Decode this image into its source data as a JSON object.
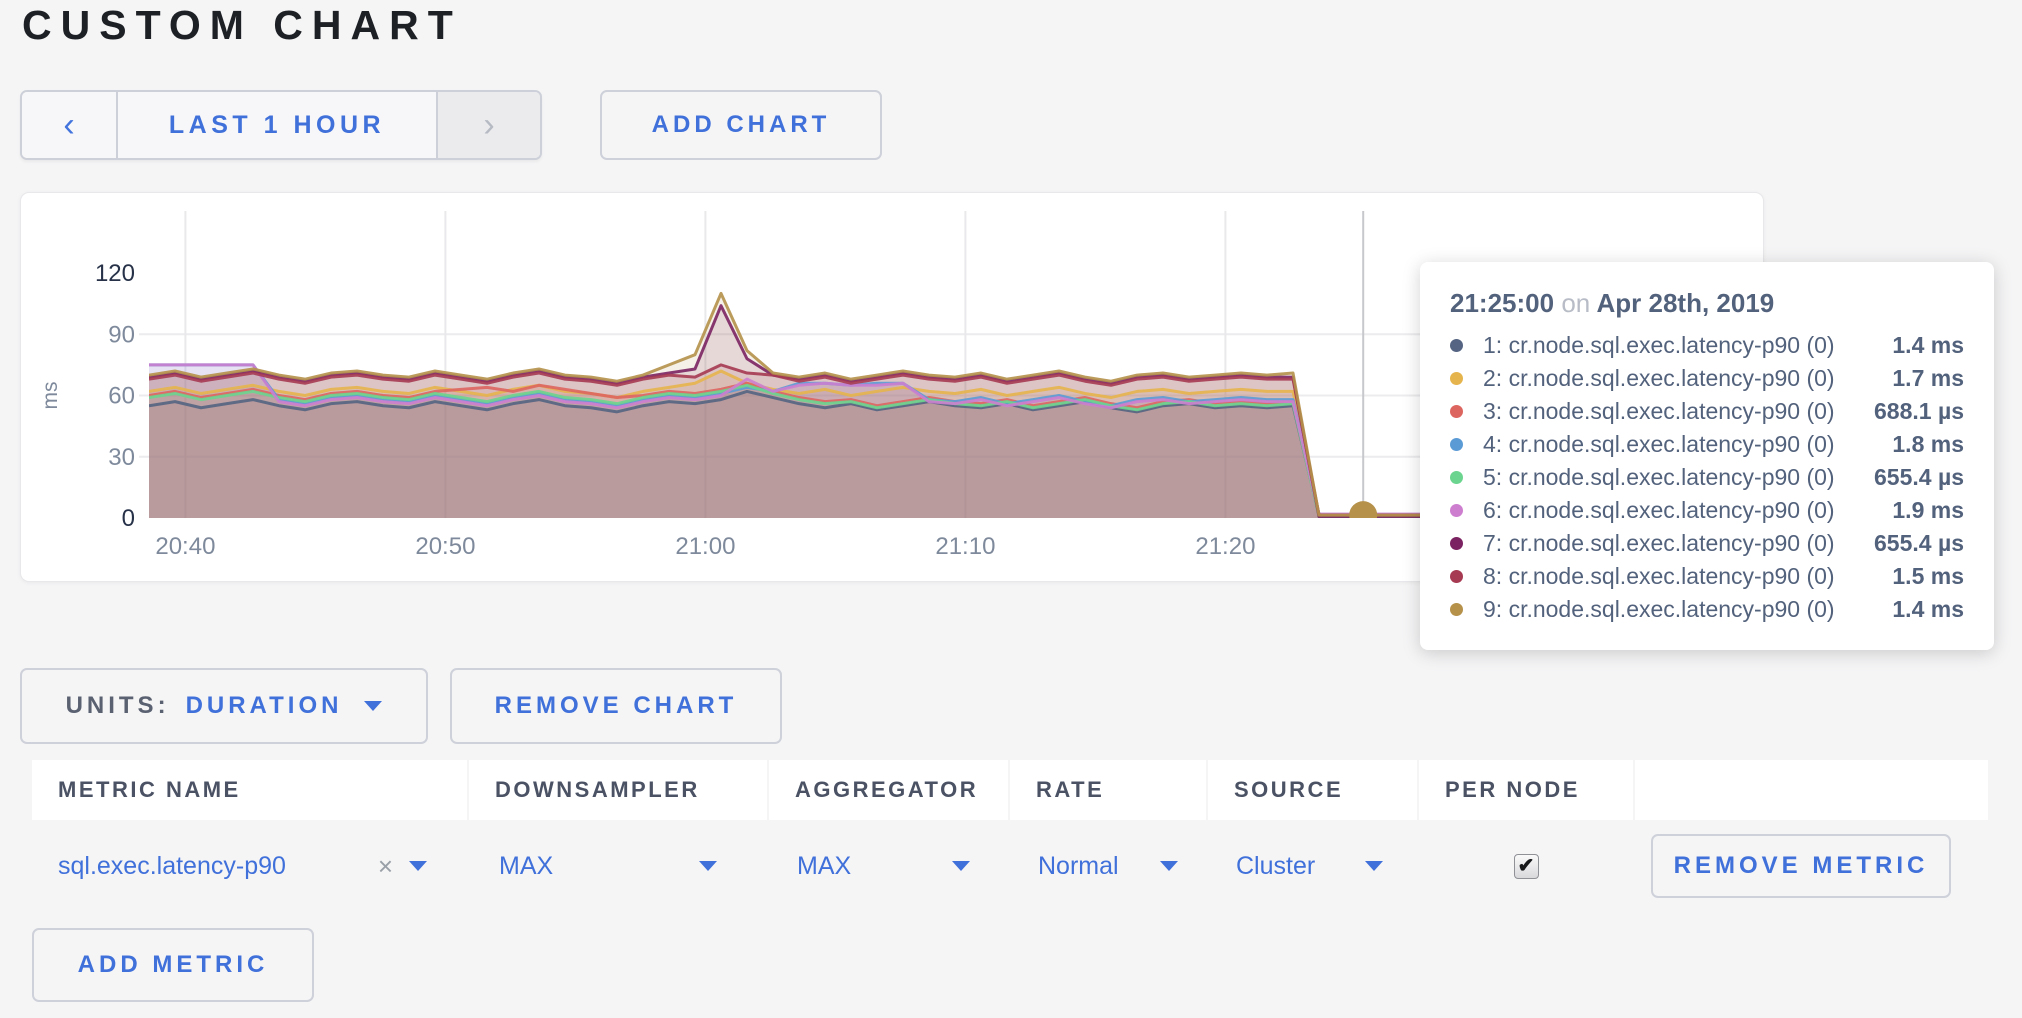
{
  "page": {
    "title": "CUSTOM CHART",
    "icons": {
      "chevron_left": "‹",
      "chevron_right": "›",
      "close": "×",
      "check": "✔"
    },
    "colors": {
      "accent_blue": "#4070da",
      "title_text": "#1d2025",
      "muted_text": "#7e8a9c",
      "tooltip_text": "#53627c"
    }
  },
  "toolbar": {
    "time_range_label": "LAST 1 HOUR",
    "add_chart_label": "ADD CHART"
  },
  "chart_controls": {
    "units_label": "UNITS:",
    "units_value": "DURATION",
    "remove_chart_label": "REMOVE CHART",
    "add_metric_label": "ADD METRIC"
  },
  "tooltip": {
    "time": "21:25:00",
    "on_word": "on",
    "date": "Apr 28th, 2019",
    "rows": [
      {
        "label": "1: cr.node.sql.exec.latency-p90 (0)",
        "value": "1.4 ms",
        "color": "#546482"
      },
      {
        "label": "2: cr.node.sql.exec.latency-p90 (0)",
        "value": "1.7 ms",
        "color": "#e5b44c"
      },
      {
        "label": "3: cr.node.sql.exec.latency-p90 (0)",
        "value": "688.1 µs",
        "color": "#dd6560"
      },
      {
        "label": "4: cr.node.sql.exec.latency-p90 (0)",
        "value": "1.8 ms",
        "color": "#5b9bd5"
      },
      {
        "label": "5: cr.node.sql.exec.latency-p90 (0)",
        "value": "655.4 µs",
        "color": "#6bd48e"
      },
      {
        "label": "6: cr.node.sql.exec.latency-p90 (0)",
        "value": "1.9 ms",
        "color": "#cd7ecf"
      },
      {
        "label": "7: cr.node.sql.exec.latency-p90 (0)",
        "value": "655.4 µs",
        "color": "#7b2362"
      },
      {
        "label": "8: cr.node.sql.exec.latency-p90 (0)",
        "value": "1.5 ms",
        "color": "#a63a52"
      },
      {
        "label": "9: cr.node.sql.exec.latency-p90 (0)",
        "value": "1.4 ms",
        "color": "#b5914a"
      }
    ]
  },
  "metrics_table": {
    "headers": [
      "METRIC NAME",
      "DOWNSAMPLER",
      "AGGREGATOR",
      "RATE",
      "SOURCE",
      "PER NODE"
    ],
    "rows": [
      {
        "metric_name": "sql.exec.latency-p90",
        "downsampler": "MAX",
        "aggregator": "MAX",
        "rate": "Normal",
        "source": "Cluster",
        "per_node": true,
        "remove_label": "REMOVE METRIC"
      }
    ]
  },
  "chart_data": {
    "type": "area",
    "ylabel": "ms",
    "ylim": [
      0,
      120
    ],
    "yticks": [
      0,
      30,
      60,
      90,
      120
    ],
    "xticks": [
      {
        "label": "20:40",
        "minute": 40
      },
      {
        "label": "20:50",
        "minute": 50
      },
      {
        "label": "21:00",
        "minute": 60
      },
      {
        "label": "21:10",
        "minute": 70
      },
      {
        "label": "21:20",
        "minute": 80
      }
    ],
    "grid": true,
    "legend_position": "tooltip",
    "x_start_minute": 38.6,
    "x_step_minute": 1,
    "hover": {
      "minute": 85.3,
      "time": "21:25:00",
      "series_index": 8,
      "value_ms": 1.4
    },
    "series": [
      {
        "name": "1: cr.node.sql.exec.latency-p90 (0)",
        "color": "#546482",
        "values": [
          55,
          57,
          54,
          56,
          58,
          55,
          53,
          56,
          57,
          55,
          54,
          57,
          55,
          53,
          56,
          58,
          55,
          54,
          52,
          55,
          57,
          56,
          58,
          62,
          59,
          56,
          54,
          56,
          53,
          55,
          57,
          55,
          54,
          56,
          53,
          55,
          57,
          54,
          52,
          55,
          56,
          54,
          55,
          54,
          55,
          1.4,
          1.4,
          1.4,
          1.4,
          1.4,
          1.4,
          1.4,
          1.4,
          1.4,
          1.4
        ]
      },
      {
        "name": "2: cr.node.sql.exec.latency-p90 (0)",
        "color": "#e5b44c",
        "values": [
          62,
          64,
          61,
          63,
          65,
          62,
          60,
          63,
          64,
          62,
          61,
          64,
          62,
          60,
          63,
          65,
          62,
          61,
          59,
          62,
          64,
          66,
          72,
          66,
          63,
          61,
          63,
          60,
          62,
          64,
          62,
          61,
          63,
          60,
          62,
          64,
          61,
          59,
          62,
          63,
          61,
          62,
          63,
          62,
          62,
          1.7,
          1.7,
          1.7,
          1.7,
          1.7,
          1.7,
          1.7,
          1.7,
          1.7,
          1.7
        ]
      },
      {
        "name": "3: cr.node.sql.exec.latency-p90 (0)",
        "color": "#dd6560",
        "values": [
          60,
          62,
          59,
          61,
          63,
          60,
          58,
          61,
          62,
          60,
          59,
          62,
          63,
          64,
          62,
          65,
          63,
          61,
          59,
          60,
          62,
          61,
          63,
          66,
          62,
          59,
          57,
          58,
          55,
          57,
          59,
          57,
          56,
          58,
          55,
          57,
          59,
          56,
          54,
          57,
          58,
          56,
          57,
          56,
          57,
          0.7,
          0.7,
          0.7,
          0.7,
          0.7,
          0.7,
          0.7,
          0.7,
          0.7,
          0.7
        ]
      },
      {
        "name": "4: cr.node.sql.exec.latency-p90 (0)",
        "color": "#5b9bd5",
        "values": [
          75,
          75,
          75,
          75,
          75,
          58,
          56,
          59,
          60,
          58,
          57,
          60,
          58,
          56,
          59,
          61,
          58,
          57,
          55,
          58,
          60,
          59,
          61,
          64,
          62,
          66,
          66,
          65,
          66,
          66,
          58,
          57,
          59,
          56,
          58,
          60,
          57,
          55,
          58,
          59,
          57,
          58,
          59,
          58,
          58,
          1.8,
          1.8,
          1.8,
          1.8,
          1.8,
          1.8,
          1.8,
          1.8,
          1.8,
          1.8
        ]
      },
      {
        "name": "5: cr.node.sql.exec.latency-p90 (0)",
        "color": "#6bd48e",
        "values": [
          59,
          61,
          58,
          60,
          62,
          59,
          57,
          60,
          61,
          59,
          58,
          61,
          59,
          57,
          60,
          62,
          59,
          58,
          56,
          59,
          61,
          60,
          62,
          65,
          61,
          58,
          56,
          57,
          54,
          56,
          58,
          56,
          55,
          57,
          54,
          56,
          58,
          55,
          53,
          56,
          57,
          55,
          56,
          55,
          56,
          0.66,
          0.66,
          0.66,
          0.66,
          0.66,
          0.66,
          0.66,
          0.66,
          0.66,
          0.66
        ]
      },
      {
        "name": "6: cr.node.sql.exec.latency-p90 (0)",
        "color": "#cd7ecf",
        "values": [
          75,
          75,
          75,
          75,
          75,
          57,
          55,
          58,
          59,
          57,
          56,
          59,
          57,
          55,
          58,
          60,
          57,
          56,
          54,
          57,
          59,
          58,
          60,
          68,
          62,
          65,
          66,
          65,
          65,
          66,
          57,
          56,
          58,
          55,
          57,
          59,
          56,
          54,
          57,
          58,
          56,
          57,
          58,
          57,
          57,
          1.9,
          1.9,
          1.9,
          1.9,
          1.9,
          1.9,
          1.9,
          1.9,
          1.9,
          1.9
        ]
      },
      {
        "name": "7: cr.node.sql.exec.latency-p90 (0)",
        "color": "#7b2362",
        "values": [
          69,
          71,
          68,
          70,
          72,
          69,
          67,
          70,
          71,
          69,
          68,
          71,
          69,
          67,
          70,
          72,
          69,
          68,
          66,
          69,
          71,
          73,
          104,
          78,
          70,
          68,
          70,
          67,
          69,
          71,
          69,
          68,
          70,
          67,
          69,
          71,
          68,
          66,
          69,
          70,
          68,
          69,
          70,
          69,
          69,
          0.66,
          0.66,
          0.66,
          0.66,
          0.66,
          0.66,
          0.66,
          0.66,
          0.66,
          0.66
        ]
      },
      {
        "name": "8: cr.node.sql.exec.latency-p90 (0)",
        "color": "#a63a52",
        "values": [
          68,
          70,
          67,
          69,
          71,
          68,
          66,
          69,
          70,
          68,
          67,
          70,
          68,
          66,
          69,
          71,
          68,
          67,
          65,
          68,
          70,
          69,
          75,
          71,
          70,
          67,
          69,
          66,
          68,
          70,
          68,
          67,
          69,
          66,
          68,
          70,
          67,
          65,
          68,
          69,
          67,
          68,
          69,
          68,
          68,
          1.5,
          1.5,
          1.5,
          1.5,
          1.5,
          1.5,
          1.5,
          1.5,
          1.5,
          1.5
        ]
      },
      {
        "name": "9: cr.node.sql.exec.latency-p90 (0)",
        "color": "#b5914a",
        "values": [
          70,
          72,
          69,
          71,
          73,
          70,
          68,
          71,
          72,
          70,
          69,
          72,
          70,
          68,
          71,
          73,
          70,
          69,
          67,
          70,
          75,
          80,
          110,
          82,
          71,
          69,
          71,
          68,
          70,
          72,
          70,
          69,
          71,
          68,
          70,
          72,
          69,
          67,
          70,
          71,
          69,
          70,
          71,
          70,
          71,
          1.4,
          1.4,
          1.4,
          1.4,
          1.4,
          1.4,
          1.4,
          1.4,
          1.4,
          1.4
        ]
      }
    ]
  }
}
